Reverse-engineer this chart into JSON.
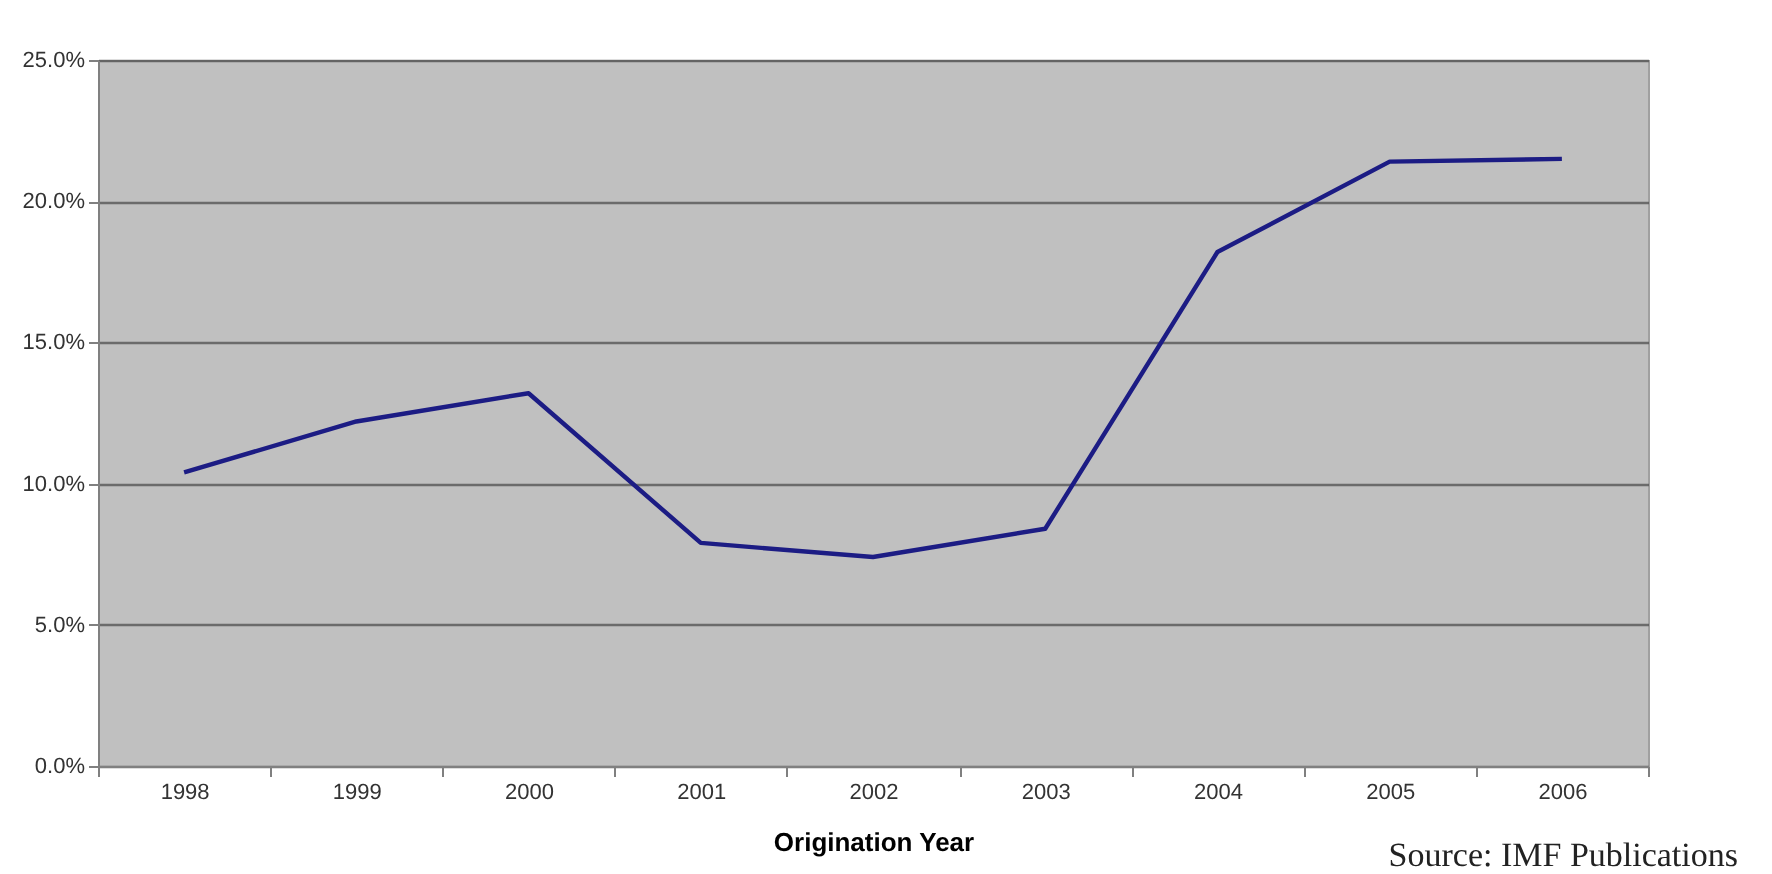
{
  "chart_data": {
    "type": "line",
    "xlabel": "Origination Year",
    "categories": [
      "1998",
      "1999",
      "2000",
      "2001",
      "2002",
      "2003",
      "2004",
      "2005",
      "2006"
    ],
    "series": [
      {
        "color": "#1c1c84",
        "values": [
          10.4,
          12.2,
          13.2,
          7.9,
          7.4,
          8.4,
          18.2,
          21.4,
          21.5
        ]
      }
    ],
    "ylim": [
      0,
      25
    ],
    "yticks": [
      {
        "value": 0,
        "label": "0.0%"
      },
      {
        "value": 5,
        "label": "5.0%"
      },
      {
        "value": 10,
        "label": "10.0%"
      },
      {
        "value": 15,
        "label": "15.0%"
      },
      {
        "value": 20,
        "label": "20.0%"
      },
      {
        "value": 25,
        "label": "25.0%"
      }
    ],
    "grid": "y",
    "marker": "none",
    "line_style": "solid",
    "annotations": [
      "Source: IMF Publications"
    ]
  }
}
